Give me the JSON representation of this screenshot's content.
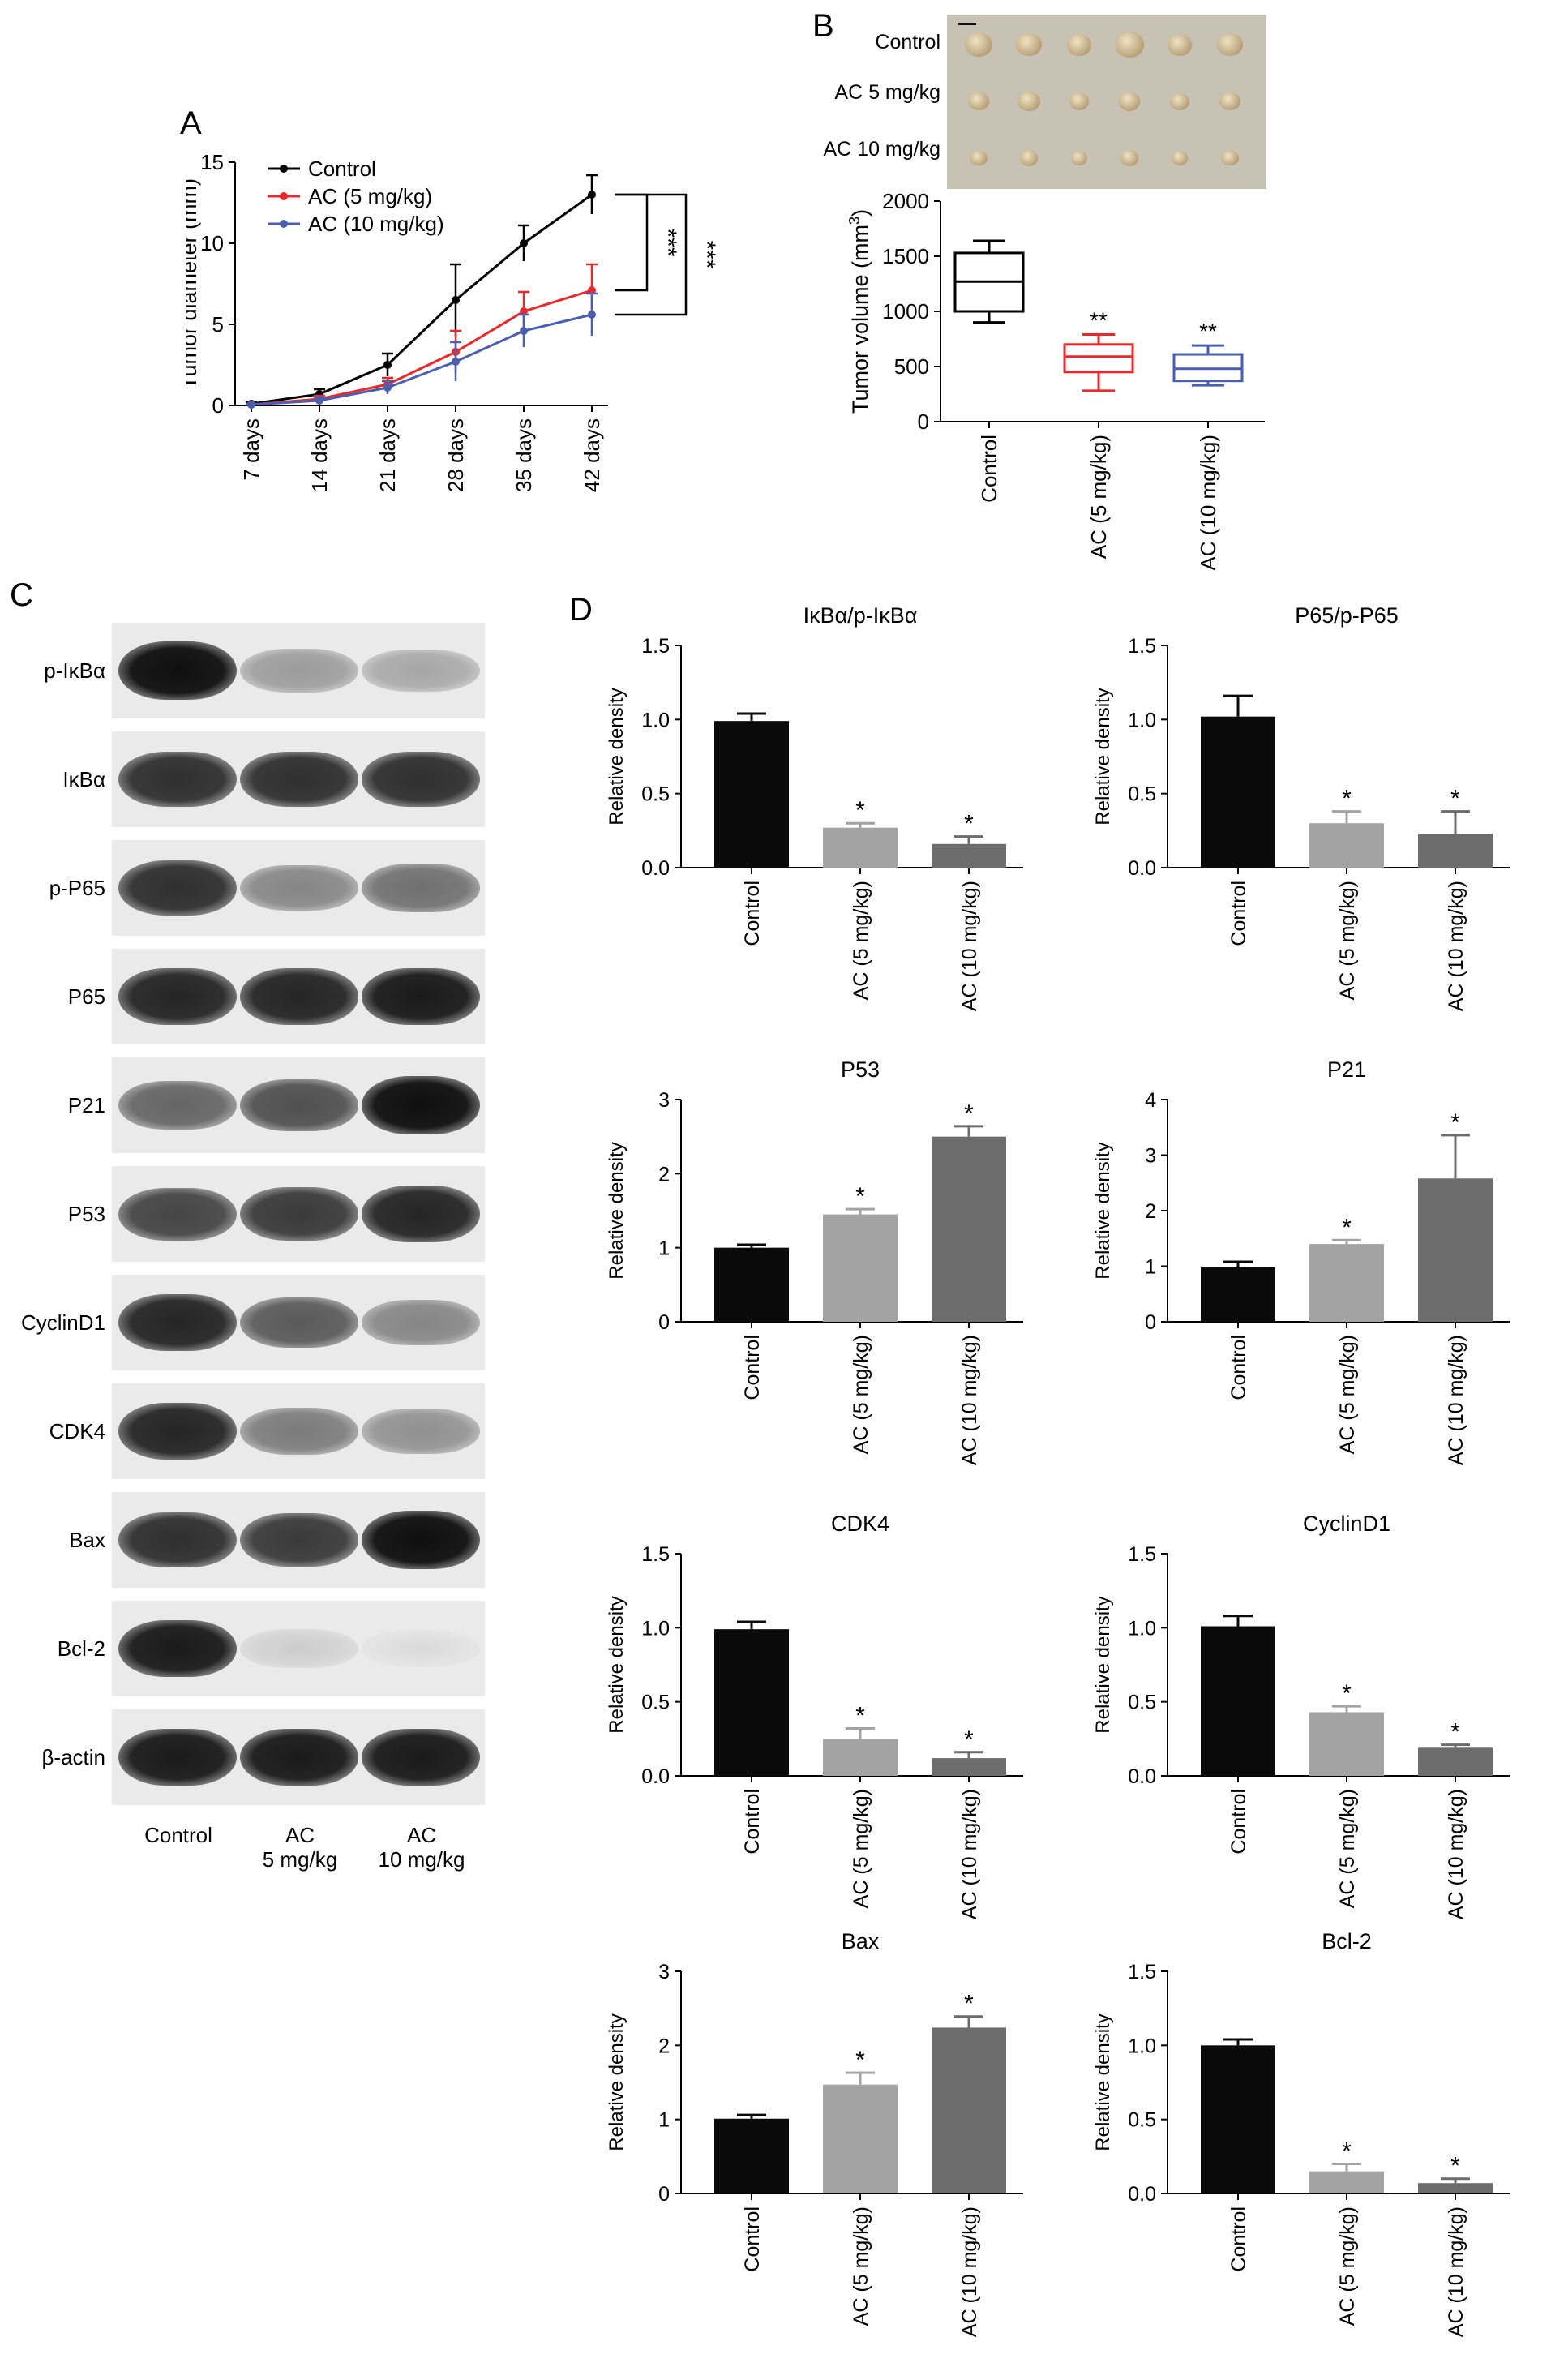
{
  "panels": {
    "A": "A",
    "B": "B",
    "C": "C",
    "D": "D"
  },
  "chart_data": [
    {
      "id": "A",
      "type": "line",
      "ylabel": "Tumor diameter (mm)",
      "x": [
        "7 days",
        "14 days",
        "21 days",
        "28 days",
        "35 days",
        "42 days"
      ],
      "ylim": [
        0,
        15
      ],
      "yticks": [
        0,
        5,
        10,
        15
      ],
      "series": [
        {
          "name": "Control",
          "color": "#000000",
          "values": [
            0.1,
            0.7,
            2.5,
            6.5,
            10,
            13
          ],
          "errors": [
            0.1,
            0.3,
            0.7,
            2.2,
            1.1,
            1.2
          ]
        },
        {
          "name": "AC (5 mg/kg)",
          "color": "#e8282b",
          "values": [
            0.05,
            0.4,
            1.3,
            3.3,
            5.8,
            7.1
          ],
          "errors": [
            0.05,
            0.2,
            0.4,
            1.3,
            1.2,
            1.6
          ]
        },
        {
          "name": "AC (10 mg/kg)",
          "color": "#4a5fb0",
          "values": [
            0.05,
            0.3,
            1.1,
            2.7,
            4.6,
            5.6
          ],
          "errors": [
            0.05,
            0.2,
            0.4,
            1.2,
            1.0,
            1.3
          ]
        }
      ],
      "significance": [
        "***",
        "***"
      ]
    },
    {
      "id": "B",
      "type": "box",
      "ylabel_prefix": "Tumor volume (mm",
      "ylabel_sup": "3",
      "ylabel_suffix": ")",
      "ylim": [
        0,
        2000
      ],
      "yticks": [
        0,
        500,
        1000,
        1500,
        2000
      ],
      "categories": [
        "Control",
        "AC (5 mg/kg)",
        "AC (10 mg/kg)"
      ],
      "colors": [
        "#000000",
        "#e8282b",
        "#4a5fb0"
      ],
      "boxes": [
        {
          "min": 900,
          "q1": 1000,
          "median": 1270,
          "q3": 1530,
          "max": 1640
        },
        {
          "min": 280,
          "q1": 450,
          "median": 590,
          "q3": 700,
          "max": 790
        },
        {
          "min": 330,
          "q1": 370,
          "median": 480,
          "q3": 610,
          "max": 690
        }
      ],
      "annotations": [
        "",
        "**",
        "**"
      ]
    },
    {
      "id": "D1",
      "type": "bar",
      "title": "IκBα/p-IκBα",
      "ylabel": "Relative density",
      "ylim": [
        0,
        1.5
      ],
      "yticks": [
        "0.0",
        "0.5",
        "1.0",
        "1.5"
      ],
      "categories": [
        "Control",
        "AC (5 mg/kg)",
        "AC (10 mg/kg)"
      ],
      "values": [
        0.99,
        0.27,
        0.16
      ],
      "errors": [
        0.05,
        0.03,
        0.05
      ],
      "annotations": [
        "",
        "*",
        "*"
      ]
    },
    {
      "id": "D2",
      "type": "bar",
      "title": "P65/p-P65",
      "ylabel": "Relative density",
      "ylim": [
        0,
        1.5
      ],
      "yticks": [
        "0.0",
        "0.5",
        "1.0",
        "1.5"
      ],
      "categories": [
        "Control",
        "AC (5 mg/kg)",
        "AC (10 mg/kg)"
      ],
      "values": [
        1.02,
        0.3,
        0.23
      ],
      "errors": [
        0.14,
        0.08,
        0.15
      ],
      "annotations": [
        "",
        "*",
        "*"
      ]
    },
    {
      "id": "D3",
      "type": "bar",
      "title": "P53",
      "ylabel": "Relative density",
      "ylim": [
        0,
        3
      ],
      "yticks": [
        "0",
        "1",
        "2",
        "3"
      ],
      "categories": [
        "Control",
        "AC (5 mg/kg)",
        "AC (10 mg/kg)"
      ],
      "values": [
        1.0,
        1.45,
        2.5
      ],
      "errors": [
        0.04,
        0.07,
        0.14
      ],
      "annotations": [
        "",
        "*",
        "*"
      ]
    },
    {
      "id": "D4",
      "type": "bar",
      "title": "P21",
      "ylabel": "Relative density",
      "ylim": [
        0,
        4
      ],
      "yticks": [
        "0",
        "1",
        "2",
        "3",
        "4"
      ],
      "categories": [
        "Control",
        "AC (5 mg/kg)",
        "AC (10 mg/kg)"
      ],
      "values": [
        0.98,
        1.4,
        2.58
      ],
      "errors": [
        0.1,
        0.07,
        0.78
      ],
      "annotations": [
        "",
        "*",
        "*"
      ]
    },
    {
      "id": "D5",
      "type": "bar",
      "title": "CDK4",
      "ylabel": "Relative density",
      "ylim": [
        0,
        1.5
      ],
      "yticks": [
        "0.0",
        "0.5",
        "1.0",
        "1.5"
      ],
      "categories": [
        "Control",
        "AC (5 mg/kg)",
        "AC (10 mg/kg)"
      ],
      "values": [
        0.99,
        0.25,
        0.12
      ],
      "errors": [
        0.05,
        0.07,
        0.04
      ],
      "annotations": [
        "",
        "*",
        "*"
      ]
    },
    {
      "id": "D6",
      "type": "bar",
      "title": "CyclinD1",
      "ylabel": "Relative density",
      "ylim": [
        0,
        1.5
      ],
      "yticks": [
        "0.0",
        "0.5",
        "1.0",
        "1.5"
      ],
      "categories": [
        "Control",
        "AC (5 mg/kg)",
        "AC (10 mg/kg)"
      ],
      "values": [
        1.01,
        0.43,
        0.19
      ],
      "errors": [
        0.07,
        0.04,
        0.02
      ],
      "annotations": [
        "",
        "*",
        "*"
      ]
    },
    {
      "id": "D7",
      "type": "bar",
      "title": "Bax",
      "ylabel": "Relative density",
      "ylim": [
        0,
        3
      ],
      "yticks": [
        "0",
        "1",
        "2",
        "3"
      ],
      "categories": [
        "Control",
        "AC (5 mg/kg)",
        "AC (10 mg/kg)"
      ],
      "values": [
        1.01,
        1.47,
        2.24
      ],
      "errors": [
        0.05,
        0.16,
        0.15
      ],
      "annotations": [
        "",
        "*",
        "*"
      ]
    },
    {
      "id": "D8",
      "type": "bar",
      "title": "Bcl-2",
      "ylabel": "Relative density",
      "ylim": [
        0,
        1.5
      ],
      "yticks": [
        "0.0",
        "0.5",
        "1.0",
        "1.5"
      ],
      "categories": [
        "Control",
        "AC (5 mg/kg)",
        "AC (10 mg/kg)"
      ],
      "values": [
        1.0,
        0.15,
        0.07
      ],
      "errors": [
        0.04,
        0.05,
        0.03
      ],
      "annotations": [
        "",
        "*",
        "*"
      ]
    }
  ],
  "photo": {
    "rows": [
      "Control",
      "AC 5 mg/kg",
      "AC 10 mg/kg"
    ],
    "tumor_sizes": [
      [
        1.0,
        0.95,
        0.9,
        1.05,
        0.9,
        0.95
      ],
      [
        0.75,
        0.8,
        0.72,
        0.78,
        0.7,
        0.74
      ],
      [
        0.62,
        0.66,
        0.6,
        0.64,
        0.58,
        0.62
      ]
    ]
  },
  "blot": {
    "labels": [
      "p-IκBα",
      "IκBα",
      "p-P65",
      "P65",
      "P21",
      "P53",
      "CyclinD1",
      "CDK4",
      "Bax",
      "Bcl-2",
      "β-actin"
    ],
    "band_intensity": [
      [
        1.0,
        0.35,
        0.3
      ],
      [
        0.85,
        0.85,
        0.85
      ],
      [
        0.85,
        0.45,
        0.55
      ],
      [
        0.9,
        0.9,
        0.95
      ],
      [
        0.6,
        0.7,
        1.0
      ],
      [
        0.75,
        0.8,
        0.9
      ],
      [
        0.9,
        0.65,
        0.45
      ],
      [
        0.9,
        0.5,
        0.4
      ],
      [
        0.85,
        0.8,
        1.0
      ],
      [
        0.95,
        0.12,
        0.06
      ],
      [
        0.95,
        0.95,
        0.95
      ]
    ],
    "columns": [
      {
        "line1": "Control",
        "line2": ""
      },
      {
        "line1": "AC",
        "line2": "5 mg/kg"
      },
      {
        "line1": "AC",
        "line2": "10 mg/kg"
      }
    ]
  }
}
